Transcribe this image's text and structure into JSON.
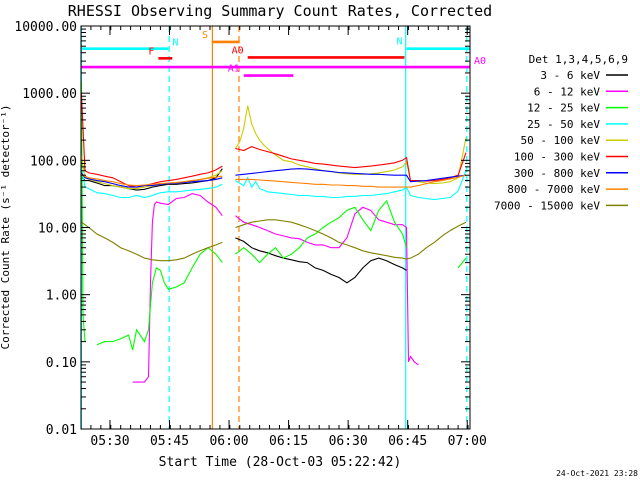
{
  "chart_data": {
    "type": "line",
    "title": "RHESSI Observing Summary Count Rates, Corrected",
    "xlabel": "Start Time (28-Oct-03 05:22:42)",
    "ylabel": "Corrected Count Rate (s⁻¹ detector⁻¹)",
    "y_scale": "log",
    "ylim": [
      0.01,
      10000
    ],
    "xlim_minutes": [
      0,
      98
    ],
    "y_ticks": [
      {
        "value": 10000,
        "label": "10000.00"
      },
      {
        "value": 1000,
        "label": "1000.00"
      },
      {
        "value": 100,
        "label": "100.00"
      },
      {
        "value": 10,
        "label": "10.00"
      },
      {
        "value": 1,
        "label": "1.00"
      },
      {
        "value": 0.1,
        "label": "0.10"
      },
      {
        "value": 0.01,
        "label": "0.01"
      }
    ],
    "x_ticks": [
      {
        "minute": 7.3,
        "label": "05:30"
      },
      {
        "minute": 22.3,
        "label": "05:45"
      },
      {
        "minute": 37.3,
        "label": "06:00"
      },
      {
        "minute": 52.3,
        "label": "06:15"
      },
      {
        "minute": 67.3,
        "label": "06:30"
      },
      {
        "minute": 82.3,
        "label": "06:45"
      },
      {
        "minute": 97.3,
        "label": "07:00"
      }
    ],
    "legend_title": "Det 1,3,4,5,6,9",
    "series": [
      {
        "name": "3 - 6 keV",
        "color": "#000000",
        "x": [
          0.1,
          1,
          2,
          4,
          6,
          8,
          10,
          12,
          14,
          16,
          18,
          20,
          22,
          24,
          26,
          28,
          30,
          32,
          34,
          35.6,
          38.9,
          41,
          43,
          45,
          47,
          49,
          51,
          53,
          55,
          57,
          59,
          61,
          63,
          65,
          67,
          69,
          71,
          73,
          75,
          77,
          79,
          81,
          82
        ],
        "y": [
          58,
          50,
          50,
          46,
          42,
          42,
          40,
          38,
          36,
          37,
          40,
          42,
          44,
          44,
          45,
          46,
          48,
          50,
          55,
          75,
          7,
          6.2,
          5,
          4.5,
          4.2,
          3.8,
          3.5,
          3.3,
          3.1,
          3,
          2.5,
          2.3,
          2.0,
          1.8,
          1.5,
          1.8,
          2.5,
          3.2,
          3.5,
          3.2,
          2.8,
          2.5,
          2.3
        ]
      },
      {
        "name": "6 - 12 keV",
        "color": "#ff00ff",
        "x": [
          13,
          15,
          16,
          17,
          17.5,
          18,
          18.5,
          19,
          20,
          22,
          24,
          26,
          28,
          30,
          32,
          34,
          35.6,
          38.9,
          41,
          43,
          45,
          47,
          49,
          51,
          53,
          55,
          57,
          59,
          61,
          63,
          65,
          67,
          69,
          71,
          73,
          75,
          77,
          79,
          81,
          82,
          82.5,
          83,
          84,
          85
        ],
        "y": [
          0.05,
          0.05,
          0.05,
          0.06,
          1.5,
          12,
          22,
          24,
          23,
          22,
          27,
          28,
          32,
          30,
          24,
          20,
          15,
          15,
          12,
          11,
          10,
          9,
          8,
          7.5,
          7,
          6.8,
          6,
          5.5,
          5.5,
          5,
          5,
          7,
          16,
          20,
          18,
          13,
          12,
          11,
          11,
          10,
          0.1,
          0.12,
          0.1,
          0.09
        ]
      },
      {
        "name": "12 - 25 keV",
        "color": "#00ff00",
        "x": [
          0.1,
          0.5,
          1,
          4,
          6,
          8,
          10,
          12,
          13,
          14,
          16,
          17,
          18,
          19,
          20,
          21,
          22,
          24,
          26,
          28,
          30,
          32,
          34,
          35.6,
          38.9,
          41,
          43,
          45,
          47,
          49,
          51,
          53,
          55,
          57,
          59,
          61,
          63,
          65,
          67,
          69,
          71,
          73,
          75,
          77,
          79,
          81,
          82,
          95,
          97
        ],
        "y": [
          1500,
          0.5,
          0.2,
          0.18,
          0.2,
          0.2,
          0.22,
          0.25,
          0.15,
          0.3,
          0.2,
          0.3,
          1.5,
          2.5,
          2.3,
          1.5,
          1.2,
          1.3,
          1.5,
          2.5,
          4,
          5,
          4,
          3,
          4,
          5,
          4,
          3,
          4,
          5,
          3.5,
          4,
          5,
          7,
          8,
          10,
          12,
          14,
          18,
          20,
          13,
          9,
          18,
          25,
          12,
          8,
          5,
          2.5,
          3.5
        ]
      },
      {
        "name": "25 - 50 keV",
        "color": "#00ffff",
        "x": [
          0.1,
          1,
          2,
          4,
          6,
          8,
          10,
          12,
          14,
          16,
          18,
          20,
          22,
          24,
          26,
          28,
          30,
          32,
          34,
          35.6,
          38.9,
          41,
          42,
          43,
          44,
          45,
          46,
          47,
          49,
          51,
          53,
          55,
          57,
          59,
          61,
          63,
          65,
          67,
          69,
          71,
          73,
          75,
          77,
          79,
          81,
          82,
          83,
          85,
          87,
          89,
          91,
          93,
          95,
          97
        ],
        "y": [
          80,
          40,
          38,
          33,
          32,
          30,
          28,
          28,
          30,
          28,
          30,
          33,
          34,
          34,
          35,
          36,
          37,
          38,
          40,
          44,
          50,
          42,
          55,
          40,
          48,
          38,
          36,
          34,
          33,
          32,
          31,
          30,
          30,
          29,
          29,
          28,
          28,
          29,
          29,
          30,
          30,
          31,
          32,
          34,
          36,
          40,
          30,
          28,
          27,
          26,
          27,
          28,
          35,
          70
        ]
      },
      {
        "name": "50 - 100 keV",
        "color": "#cccc00",
        "x": [
          0.1,
          1,
          2,
          4,
          6,
          8,
          10,
          12,
          14,
          16,
          18,
          20,
          22,
          24,
          26,
          28,
          30,
          32,
          34,
          35.6,
          38.9,
          40,
          41,
          42,
          43,
          44,
          45,
          46,
          47,
          49,
          51,
          53,
          55,
          57,
          59,
          61,
          63,
          65,
          67,
          69,
          71,
          73,
          75,
          77,
          79,
          81,
          82,
          83,
          85,
          87,
          89,
          91,
          93,
          95,
          97
        ],
        "y": [
          120,
          55,
          52,
          48,
          45,
          42,
          40,
          38,
          38,
          40,
          42,
          44,
          45,
          46,
          48,
          50,
          52,
          55,
          60,
          70,
          150,
          190,
          300,
          650,
          350,
          250,
          200,
          170,
          150,
          120,
          100,
          95,
          85,
          80,
          75,
          70,
          68,
          65,
          63,
          62,
          62,
          63,
          65,
          68,
          72,
          80,
          95,
          50,
          48,
          46,
          45,
          46,
          48,
          55,
          220
        ]
      },
      {
        "name": "100 - 300 keV",
        "color": "#ff0000",
        "x": [
          0.1,
          1,
          2,
          4,
          6,
          8,
          10,
          12,
          14,
          16,
          18,
          20,
          22,
          24,
          26,
          28,
          30,
          32,
          34,
          35.6,
          38.9,
          41,
          43,
          45,
          47,
          49,
          51,
          53,
          55,
          57,
          59,
          61,
          63,
          65,
          67,
          69,
          71,
          73,
          75,
          77,
          79,
          81,
          82,
          83,
          85,
          87,
          89,
          91,
          93,
          95,
          97
        ],
        "y": [
          1000,
          70,
          65,
          62,
          58,
          55,
          48,
          42,
          40,
          42,
          45,
          48,
          50,
          52,
          55,
          58,
          62,
          65,
          72,
          82,
          150,
          140,
          160,
          145,
          135,
          125,
          115,
          105,
          100,
          95,
          90,
          88,
          85,
          82,
          80,
          78,
          80,
          82,
          85,
          88,
          92,
          100,
          110,
          50,
          50,
          49,
          50,
          52,
          55,
          60,
          130
        ]
      },
      {
        "name": "300 - 800 keV",
        "color": "#0000ff",
        "x": [
          0.1,
          1,
          2,
          4,
          6,
          8,
          10,
          12,
          14,
          16,
          18,
          20,
          22,
          24,
          26,
          28,
          30,
          32,
          34,
          35.6,
          38.9,
          41,
          43,
          45,
          47,
          49,
          51,
          53,
          55,
          57,
          59,
          61,
          63,
          65,
          67,
          69,
          71,
          73,
          75,
          77,
          79,
          81,
          82,
          83,
          85,
          87,
          89,
          91,
          93,
          95,
          97
        ],
        "y": [
          65,
          55,
          53,
          50,
          48,
          45,
          42,
          40,
          40,
          42,
          42,
          44,
          45,
          46,
          47,
          48,
          49,
          50,
          52,
          55,
          60,
          62,
          64,
          66,
          68,
          70,
          72,
          74,
          75,
          74,
          72,
          70,
          68,
          66,
          65,
          64,
          63,
          62,
          62,
          61,
          60,
          60,
          60,
          48,
          49,
          50,
          52,
          54,
          56,
          58,
          60
        ]
      },
      {
        "name": "800 - 7000 keV",
        "color": "#ff8000",
        "x": [
          0.1,
          1,
          2,
          4,
          6,
          8,
          10,
          12,
          14,
          16,
          18,
          20,
          22,
          24,
          26,
          28,
          30,
          32,
          34,
          35.6,
          38.9,
          41,
          43,
          45,
          47,
          49,
          51,
          53,
          55,
          57,
          59,
          61,
          63,
          65,
          67,
          69,
          71,
          73,
          75,
          77,
          79,
          81,
          82,
          83,
          85,
          87,
          89,
          91,
          93,
          95,
          97
        ],
        "y": [
          60,
          58,
          55,
          53,
          50,
          48,
          45,
          43,
          42,
          43,
          44,
          45,
          46,
          47,
          48,
          50,
          52,
          54,
          56,
          58,
          52,
          52,
          52,
          51,
          50,
          49,
          48,
          47,
          46,
          45,
          44,
          44,
          43,
          43,
          42,
          42,
          41,
          41,
          40,
          40,
          40,
          40,
          40,
          40,
          42,
          45,
          48,
          50,
          53,
          56,
          60
        ]
      },
      {
        "name": "7000 - 15000 keV",
        "color": "#808000",
        "x": [
          0.1,
          1,
          2,
          4,
          6,
          8,
          10,
          12,
          14,
          16,
          18,
          20,
          22,
          24,
          26,
          28,
          30,
          32,
          34,
          35.6,
          38.9,
          41,
          43,
          45,
          47,
          49,
          51,
          53,
          55,
          57,
          59,
          61,
          63,
          65,
          67,
          69,
          71,
          73,
          75,
          77,
          79,
          81,
          82,
          83,
          85,
          87,
          89,
          91,
          93,
          95,
          97
        ],
        "y": [
          12,
          11,
          10,
          8,
          7,
          6,
          5,
          4.5,
          4,
          3.5,
          3.3,
          3.2,
          3.2,
          3.3,
          3.5,
          4,
          4.5,
          5,
          5.5,
          6,
          10,
          11,
          12,
          12.5,
          13,
          13,
          12.5,
          12,
          11,
          10,
          9,
          8,
          7,
          6,
          5.5,
          5,
          4.5,
          4.2,
          4,
          3.8,
          3.6,
          3.5,
          3.4,
          3.5,
          4,
          5,
          6,
          7.5,
          9,
          10.5,
          12
        ]
      }
    ],
    "flag_bars": [
      {
        "label": "N",
        "color": "#00ffff",
        "x": [
          0,
          22
        ],
        "level": 4600
      },
      {
        "label": "N",
        "color": "#00ffff",
        "x": [
          82,
          98
        ],
        "level": 4600
      },
      {
        "label": "F",
        "color": "#ff0000",
        "x": [
          19.5,
          23
        ],
        "level": 3300
      },
      {
        "label": "S",
        "color": "#ff8000",
        "x": [
          33,
          40
        ],
        "level": 5800
      },
      {
        "label": "A0",
        "color": "#ff0000",
        "x": [
          42,
          81.5
        ],
        "level": 3400
      },
      {
        "label": "A0",
        "color": "#ff00ff",
        "x": [
          0,
          98
        ],
        "level": 2450
      },
      {
        "label": "A1",
        "color": "#ff00ff",
        "x": [
          41,
          53.5
        ],
        "level": 1830
      }
    ],
    "vertical_markers": [
      {
        "minute": 0.1,
        "color": "#00ffff",
        "style": "solid"
      },
      {
        "minute": 22.2,
        "color": "#00ffff",
        "style": "dashed"
      },
      {
        "minute": 33.1,
        "color": "#ff8000",
        "style": "solid"
      },
      {
        "minute": 39.8,
        "color": "#ff8000",
        "style": "dashed"
      },
      {
        "minute": 81.8,
        "color": "#00ffff",
        "style": "solid"
      },
      {
        "minute": 97.2,
        "color": "#00ffff",
        "style": "dashed"
      }
    ]
  },
  "timestamp": "24-Oct-2021 23:28"
}
